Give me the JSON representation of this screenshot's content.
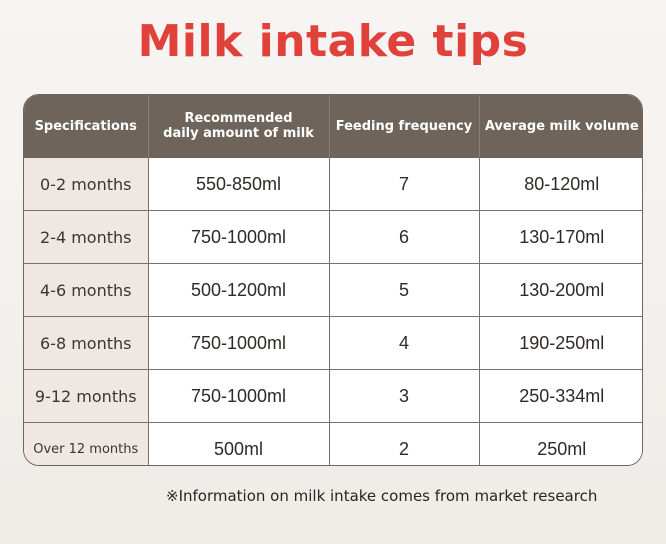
{
  "title": "Milk intake tips",
  "table": {
    "headers": [
      {
        "line1": "Specifications",
        "line2": ""
      },
      {
        "line1": "Recommended",
        "line2": "daily amount of milk"
      },
      {
        "line1": "Feeding frequency",
        "line2": ""
      },
      {
        "line1": "Average milk volume",
        "line2": ""
      }
    ],
    "rows": [
      {
        "spec": "0-2 months",
        "daily": "550-850ml",
        "frequency": "7",
        "average": "80-120ml"
      },
      {
        "spec": "2-4 months",
        "daily": "750-1000ml",
        "frequency": "6",
        "average": "130-170ml"
      },
      {
        "spec": "4-6 months",
        "daily": "500-1200ml",
        "frequency": "5",
        "average": "130-200ml"
      },
      {
        "spec": "6-8 months",
        "daily": "750-1000ml",
        "frequency": "4",
        "average": "190-250ml"
      },
      {
        "spec": "9-12 months",
        "daily": "750-1000ml",
        "frequency": "3",
        "average": "250-334ml"
      },
      {
        "spec": "Over 12 months",
        "daily": "500ml",
        "frequency": "2",
        "average": "250ml"
      }
    ]
  },
  "note": "※Information on milk intake comes from market research",
  "colors": {
    "title": "#e0413b",
    "header_bg": "#6e645c",
    "spec_bg": "#efe7e1"
  }
}
